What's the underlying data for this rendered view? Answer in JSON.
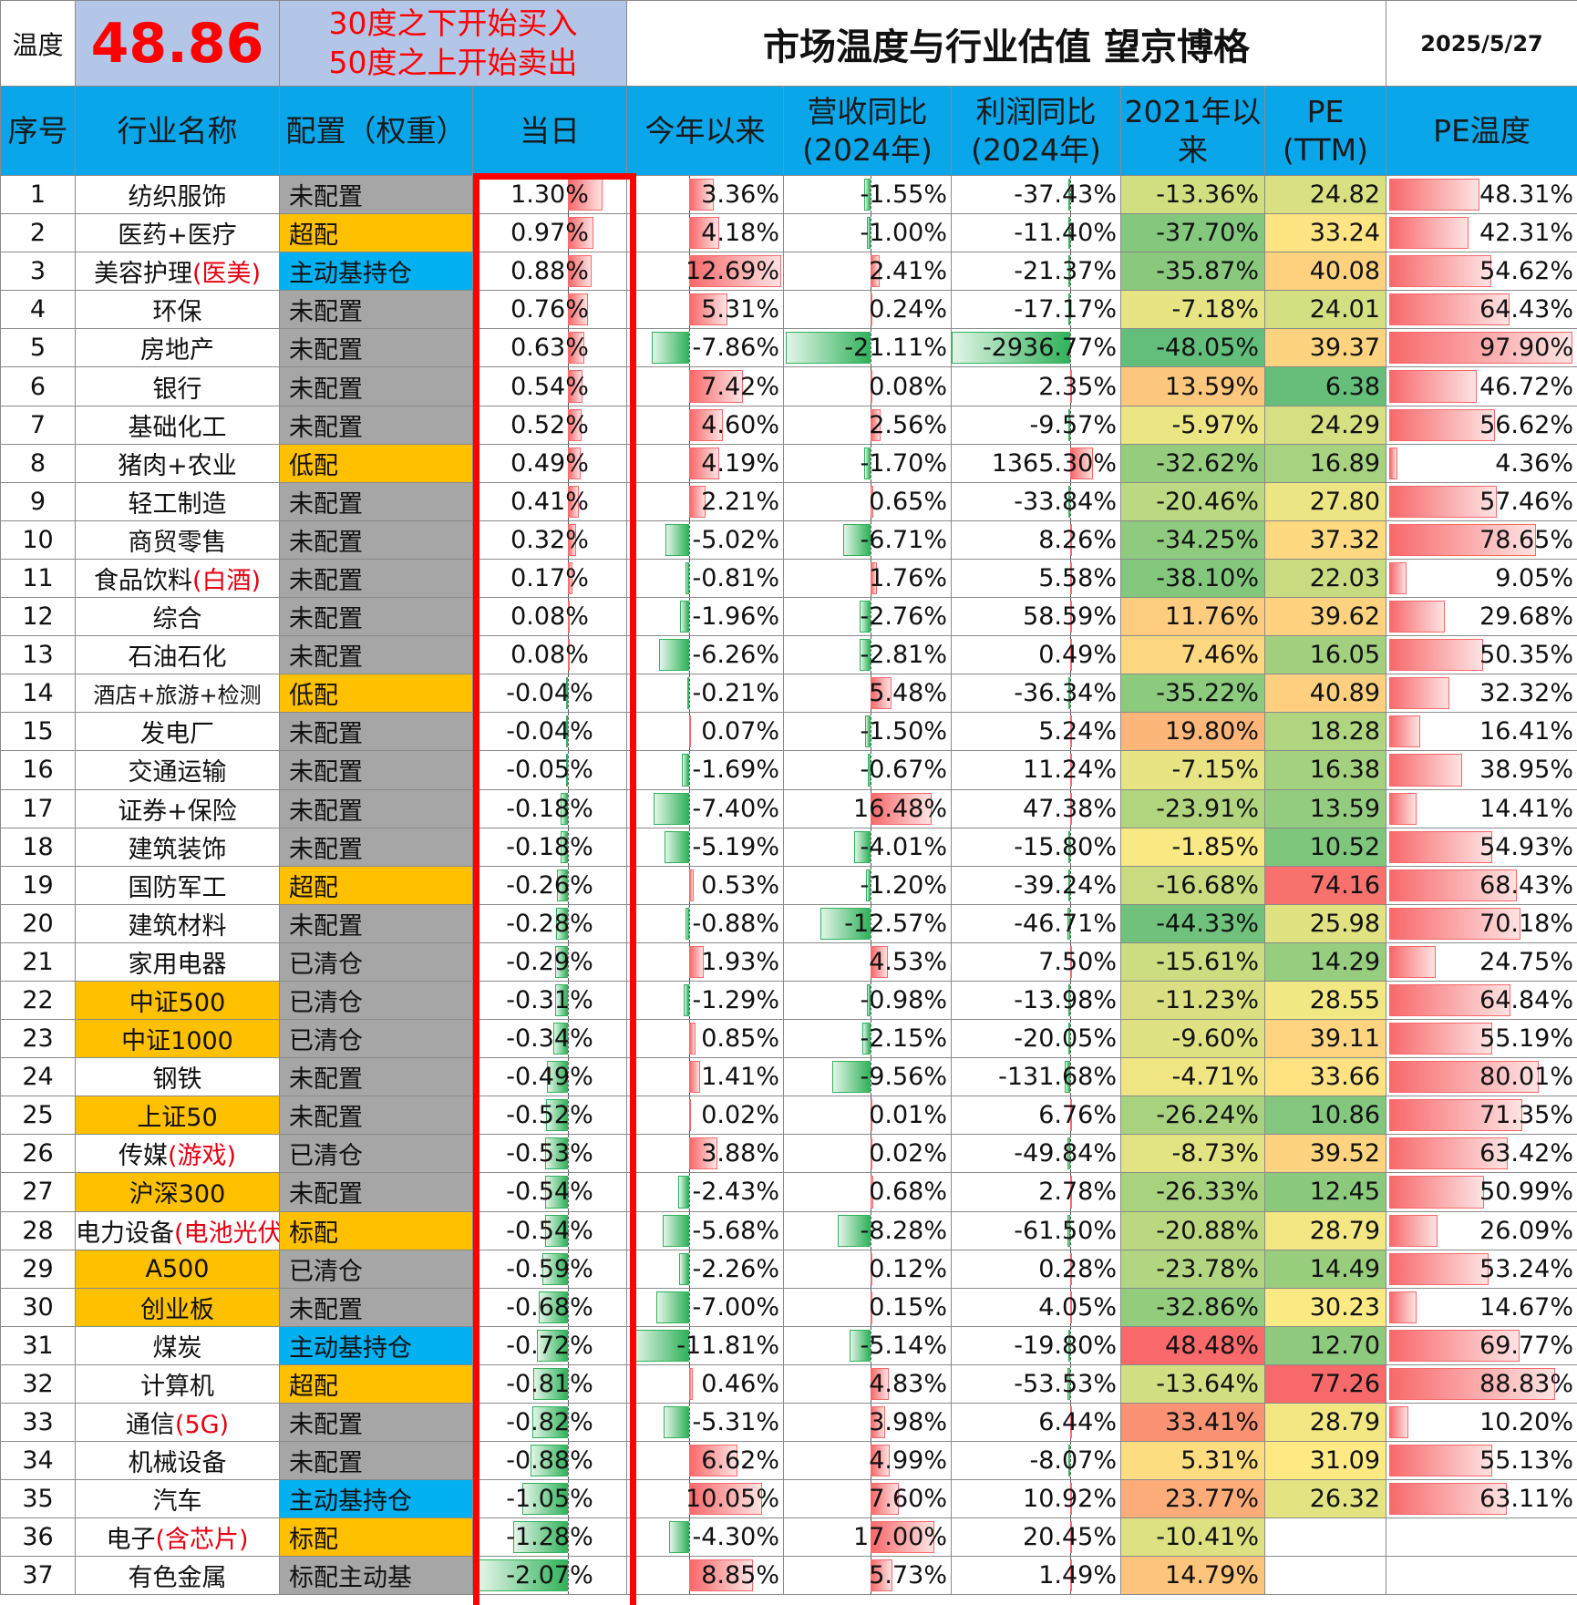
{
  "header": {
    "temp_label": "温度",
    "temp_value": "48.86",
    "rule_line1": "30度之下开始买入",
    "rule_line2": "50度之上开始卖出",
    "title": "市场温度与行业估值 望京博格",
    "date": "2025/5/27"
  },
  "columns": {
    "idx": "序号",
    "name": "行业名称",
    "alloc": "配置（权重）",
    "today": "当日",
    "ytd": "今年以来",
    "rev_l1": "营收同比",
    "rev_l2": "(2024年)",
    "profit_l1": "利润同比",
    "profit_l2": "(2024年)",
    "since2021_l1": "2021年以",
    "since2021_l2": "来",
    "pe_l1": "PE",
    "pe_l2": "(TTM)",
    "pe_temp": "PE温度"
  },
  "colors": {
    "header_blue": "#0aa6ea",
    "gray_alloc": "#a6a6a6",
    "gold": "#ffc000",
    "blue_alloc": "#00b0f0",
    "red_highlight": "#e60012",
    "bar_red": "#f8696b",
    "bar_green": "#31b25b"
  },
  "rows": [
    {
      "idx": "1",
      "name": "纺织服饰",
      "name_hl": "",
      "alloc": "未配置",
      "today": "1.30%",
      "ytd": "3.36%",
      "rev": "-1.55%",
      "profit": "-37.43%",
      "since2021": "-13.36%",
      "pe": "24.82",
      "pe_temp": "48.31%"
    },
    {
      "idx": "2",
      "name": "医药+医疗",
      "name_hl": "",
      "alloc": "超配",
      "today": "0.97%",
      "ytd": "4.18%",
      "rev": "-1.00%",
      "profit": "-11.40%",
      "since2021": "-37.70%",
      "pe": "33.24",
      "pe_temp": "42.31%"
    },
    {
      "idx": "3",
      "name": "美容护理",
      "name_hl": "(医美)",
      "alloc": "主动基持仓",
      "today": "0.88%",
      "ytd": "12.69%",
      "rev": "2.41%",
      "profit": "-21.37%",
      "since2021": "-35.87%",
      "pe": "40.08",
      "pe_temp": "54.62%"
    },
    {
      "idx": "4",
      "name": "环保",
      "name_hl": "",
      "alloc": "未配置",
      "today": "0.76%",
      "ytd": "5.31%",
      "rev": "0.24%",
      "profit": "-17.17%",
      "since2021": "-7.18%",
      "pe": "24.01",
      "pe_temp": "64.43%"
    },
    {
      "idx": "5",
      "name": "房地产",
      "name_hl": "",
      "alloc": "未配置",
      "today": "0.63%",
      "ytd": "-7.86%",
      "rev": "-21.11%",
      "profit": "-2936.77%",
      "since2021": "-48.05%",
      "pe": "39.37",
      "pe_temp": "97.90%"
    },
    {
      "idx": "6",
      "name": "银行",
      "name_hl": "",
      "alloc": "未配置",
      "today": "0.54%",
      "ytd": "7.42%",
      "rev": "0.08%",
      "profit": "2.35%",
      "since2021": "13.59%",
      "pe": "6.38",
      "pe_temp": "46.72%"
    },
    {
      "idx": "7",
      "name": "基础化工",
      "name_hl": "",
      "alloc": "未配置",
      "today": "0.52%",
      "ytd": "4.60%",
      "rev": "2.56%",
      "profit": "-9.57%",
      "since2021": "-5.97%",
      "pe": "24.29",
      "pe_temp": "56.62%"
    },
    {
      "idx": "8",
      "name": "猪肉+农业",
      "name_hl": "",
      "alloc": "低配",
      "today": "0.49%",
      "ytd": "4.19%",
      "rev": "-1.70%",
      "profit": "1365.30%",
      "since2021": "-32.62%",
      "pe": "16.89",
      "pe_temp": "4.36%"
    },
    {
      "idx": "9",
      "name": "轻工制造",
      "name_hl": "",
      "alloc": "未配置",
      "today": "0.41%",
      "ytd": "2.21%",
      "rev": "0.65%",
      "profit": "-33.84%",
      "since2021": "-20.46%",
      "pe": "27.80",
      "pe_temp": "57.46%"
    },
    {
      "idx": "10",
      "name": "商贸零售",
      "name_hl": "",
      "alloc": "未配置",
      "today": "0.32%",
      "ytd": "-5.02%",
      "rev": "-6.71%",
      "profit": "8.26%",
      "since2021": "-34.25%",
      "pe": "37.32",
      "pe_temp": "78.65%"
    },
    {
      "idx": "11",
      "name": "食品饮料",
      "name_hl": "(白酒)",
      "alloc": "未配置",
      "today": "0.17%",
      "ytd": "-0.81%",
      "rev": "1.76%",
      "profit": "5.58%",
      "since2021": "-38.10%",
      "pe": "22.03",
      "pe_temp": "9.05%"
    },
    {
      "idx": "12",
      "name": "综合",
      "name_hl": "",
      "alloc": "未配置",
      "today": "0.08%",
      "ytd": "-1.96%",
      "rev": "-2.76%",
      "profit": "58.59%",
      "since2021": "11.76%",
      "pe": "39.62",
      "pe_temp": "29.68%"
    },
    {
      "idx": "13",
      "name": "石油石化",
      "name_hl": "",
      "alloc": "未配置",
      "today": "0.08%",
      "ytd": "-6.26%",
      "rev": "-2.81%",
      "profit": "0.49%",
      "since2021": "7.46%",
      "pe": "16.05",
      "pe_temp": "50.35%"
    },
    {
      "idx": "14",
      "name": "酒店+旅游+检测",
      "name_hl": "",
      "alloc": "低配",
      "today": "-0.04%",
      "ytd": "-0.21%",
      "rev": "5.48%",
      "profit": "-36.34%",
      "since2021": "-35.22%",
      "pe": "40.89",
      "pe_temp": "32.32%"
    },
    {
      "idx": "15",
      "name": "发电厂",
      "name_hl": "",
      "alloc": "未配置",
      "today": "-0.04%",
      "ytd": "0.07%",
      "rev": "-1.50%",
      "profit": "5.24%",
      "since2021": "19.80%",
      "pe": "18.28",
      "pe_temp": "16.41%"
    },
    {
      "idx": "16",
      "name": "交通运输",
      "name_hl": "",
      "alloc": "未配置",
      "today": "-0.05%",
      "ytd": "-1.69%",
      "rev": "-0.67%",
      "profit": "11.24%",
      "since2021": "-7.15%",
      "pe": "16.38",
      "pe_temp": "38.95%"
    },
    {
      "idx": "17",
      "name": "证券+保险",
      "name_hl": "",
      "alloc": "未配置",
      "today": "-0.18%",
      "ytd": "-7.40%",
      "rev": "16.48%",
      "profit": "47.38%",
      "since2021": "-23.91%",
      "pe": "13.59",
      "pe_temp": "14.41%"
    },
    {
      "idx": "18",
      "name": "建筑装饰",
      "name_hl": "",
      "alloc": "未配置",
      "today": "-0.18%",
      "ytd": "-5.19%",
      "rev": "-4.01%",
      "profit": "-15.80%",
      "since2021": "-1.85%",
      "pe": "10.52",
      "pe_temp": "54.93%"
    },
    {
      "idx": "19",
      "name": "国防军工",
      "name_hl": "",
      "alloc": "超配",
      "today": "-0.26%",
      "ytd": "0.53%",
      "rev": "-1.20%",
      "profit": "-39.24%",
      "since2021": "-16.68%",
      "pe": "74.16",
      "pe_temp": "68.43%"
    },
    {
      "idx": "20",
      "name": "建筑材料",
      "name_hl": "",
      "alloc": "未配置",
      "today": "-0.28%",
      "ytd": "-0.88%",
      "rev": "-12.57%",
      "profit": "-46.71%",
      "since2021": "-44.33%",
      "pe": "25.98",
      "pe_temp": "70.18%"
    },
    {
      "idx": "21",
      "name": "家用电器",
      "name_hl": "",
      "alloc": "已清仓",
      "today": "-0.29%",
      "ytd": "1.93%",
      "rev": "4.53%",
      "profit": "7.50%",
      "since2021": "-15.61%",
      "pe": "14.29",
      "pe_temp": "24.75%"
    },
    {
      "idx": "22",
      "name": "中证500",
      "name_hl": "",
      "alloc": "已清仓",
      "today": "-0.31%",
      "ytd": "-1.29%",
      "rev": "-0.98%",
      "profit": "-13.98%",
      "since2021": "-11.23%",
      "pe": "28.55",
      "pe_temp": "64.84%"
    },
    {
      "idx": "23",
      "name": "中证1000",
      "name_hl": "",
      "alloc": "已清仓",
      "today": "-0.34%",
      "ytd": "0.85%",
      "rev": "-2.15%",
      "profit": "-20.05%",
      "since2021": "-9.60%",
      "pe": "39.11",
      "pe_temp": "55.19%"
    },
    {
      "idx": "24",
      "name": "钢铁",
      "name_hl": "",
      "alloc": "未配置",
      "today": "-0.49%",
      "ytd": "1.41%",
      "rev": "-9.56%",
      "profit": "-131.68%",
      "since2021": "-4.71%",
      "pe": "33.66",
      "pe_temp": "80.01%"
    },
    {
      "idx": "25",
      "name": "上证50",
      "name_hl": "",
      "alloc": "未配置",
      "today": "-0.52%",
      "ytd": "0.02%",
      "rev": "0.01%",
      "profit": "6.76%",
      "since2021": "-26.24%",
      "pe": "10.86",
      "pe_temp": "71.35%"
    },
    {
      "idx": "26",
      "name": "传媒",
      "name_hl": "(游戏)",
      "alloc": "已清仓",
      "today": "-0.53%",
      "ytd": "3.88%",
      "rev": "0.02%",
      "profit": "-49.84%",
      "since2021": "-8.73%",
      "pe": "39.52",
      "pe_temp": "63.42%"
    },
    {
      "idx": "27",
      "name": "沪深300",
      "name_hl": "",
      "alloc": "未配置",
      "today": "-0.54%",
      "ytd": "-2.43%",
      "rev": "0.68%",
      "profit": "2.78%",
      "since2021": "-26.33%",
      "pe": "12.45",
      "pe_temp": "50.99%"
    },
    {
      "idx": "28",
      "name": "电力设备",
      "name_hl": "(电池光伏)",
      "alloc": "标配",
      "today": "-0.54%",
      "ytd": "-5.68%",
      "rev": "-8.28%",
      "profit": "-61.50%",
      "since2021": "-20.88%",
      "pe": "28.79",
      "pe_temp": "26.09%"
    },
    {
      "idx": "29",
      "name": "A500",
      "name_hl": "",
      "alloc": "已清仓",
      "today": "-0.59%",
      "ytd": "-2.26%",
      "rev": "0.12%",
      "profit": "0.28%",
      "since2021": "-23.78%",
      "pe": "14.49",
      "pe_temp": "53.24%"
    },
    {
      "idx": "30",
      "name": "创业板",
      "name_hl": "",
      "alloc": "未配置",
      "today": "-0.68%",
      "ytd": "-7.00%",
      "rev": "0.15%",
      "profit": "4.05%",
      "since2021": "-32.86%",
      "pe": "30.23",
      "pe_temp": "14.67%"
    },
    {
      "idx": "31",
      "name": "煤炭",
      "name_hl": "",
      "alloc": "主动基持仓",
      "today": "-0.72%",
      "ytd": "-11.81%",
      "rev": "-5.14%",
      "profit": "-19.80%",
      "since2021": "48.48%",
      "pe": "12.70",
      "pe_temp": "69.77%"
    },
    {
      "idx": "32",
      "name": "计算机",
      "name_hl": "",
      "alloc": "超配",
      "today": "-0.81%",
      "ytd": "0.46%",
      "rev": "4.83%",
      "profit": "-53.53%",
      "since2021": "-13.64%",
      "pe": "77.26",
      "pe_temp": "88.83%"
    },
    {
      "idx": "33",
      "name": "通信",
      "name_hl": "(5G)",
      "alloc": "未配置",
      "today": "-0.82%",
      "ytd": "-5.31%",
      "rev": "3.98%",
      "profit": "6.44%",
      "since2021": "33.41%",
      "pe": "28.79",
      "pe_temp": "10.20%"
    },
    {
      "idx": "34",
      "name": "机械设备",
      "name_hl": "",
      "alloc": "未配置",
      "today": "-0.88%",
      "ytd": "6.62%",
      "rev": "4.99%",
      "profit": "-8.07%",
      "since2021": "5.31%",
      "pe": "31.09",
      "pe_temp": "55.13%"
    },
    {
      "idx": "35",
      "name": "汽车",
      "name_hl": "",
      "alloc": "主动基持仓",
      "today": "-1.05%",
      "ytd": "10.05%",
      "rev": "7.60%",
      "profit": "10.92%",
      "since2021": "23.77%",
      "pe": "26.32",
      "pe_temp": "63.11%"
    },
    {
      "idx": "36",
      "name": "电子",
      "name_hl": "(含芯片)",
      "alloc": "标配",
      "today": "-1.28%",
      "ytd": "-4.30%",
      "rev": "17.00%",
      "profit": "20.45%",
      "since2021": "-10.41%",
      "pe": "",
      "pe_temp": ""
    },
    {
      "idx": "37",
      "name": "有色金属",
      "name_hl": "",
      "alloc": "标配主动基",
      "today": "-2.07%",
      "ytd": "8.85%",
      "rev": "5.73%",
      "profit": "1.49%",
      "since2021": "14.79%",
      "pe": "",
      "pe_temp": ""
    }
  ]
}
